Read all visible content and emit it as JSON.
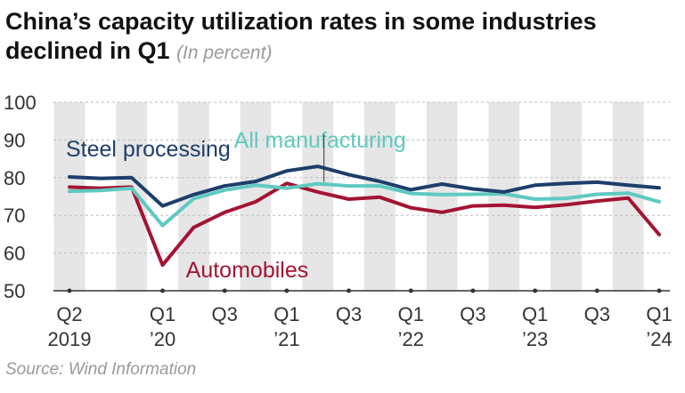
{
  "title_main": "China’s capacity utilization rates in some industries declined in Q1",
  "title_unit": "(In percent)",
  "source": "Source: Wind Information",
  "chart_data": {
    "type": "line",
    "title": "China’s capacity utilization rates in some industries declined in Q1",
    "ylabel": "In percent",
    "ylim": [
      50,
      100
    ],
    "yticks": [
      50,
      60,
      70,
      80,
      90,
      100
    ],
    "x": [
      "Q2 2019",
      "Q3 2019",
      "Q4 2019",
      "Q1 2020",
      "Q2 2020",
      "Q3 2020",
      "Q4 2020",
      "Q1 2021",
      "Q2 2021",
      "Q3 2021",
      "Q4 2021",
      "Q1 2022",
      "Q2 2022",
      "Q3 2022",
      "Q4 2022",
      "Q1 2023",
      "Q2 2023",
      "Q3 2023",
      "Q4 2023",
      "Q1 2024"
    ],
    "xtick_labels": [
      {
        "index": 0,
        "line1": "Q2",
        "line2": "2019"
      },
      {
        "index": 3,
        "line1": "Q1",
        "line2": "’20"
      },
      {
        "index": 5,
        "line1": "Q3",
        "line2": ""
      },
      {
        "index": 7,
        "line1": "Q1",
        "line2": "’21"
      },
      {
        "index": 9,
        "line1": "Q3",
        "line2": ""
      },
      {
        "index": 11,
        "line1": "Q1",
        "line2": "’22"
      },
      {
        "index": 13,
        "line1": "Q3",
        "line2": ""
      },
      {
        "index": 15,
        "line1": "Q1",
        "line2": "’23"
      },
      {
        "index": 17,
        "line1": "Q3",
        "line2": ""
      },
      {
        "index": 19,
        "line1": "Q1",
        "line2": "’24"
      }
    ],
    "series": [
      {
        "name": "Automobiles",
        "color": "#a31432",
        "values": [
          77.5,
          77.2,
          77.5,
          56.8,
          66.8,
          70.8,
          73.6,
          78.5,
          76.2,
          74.3,
          74.8,
          72.0,
          70.8,
          72.5,
          72.7,
          72.1,
          72.8,
          73.8,
          74.6,
          64.9
        ]
      },
      {
        "name": "All manufacturing",
        "color": "#5fc9c0",
        "values": [
          76.4,
          76.6,
          77.2,
          67.3,
          74.4,
          76.7,
          78.0,
          77.2,
          78.4,
          77.8,
          77.8,
          75.8,
          75.5,
          75.6,
          75.7,
          74.3,
          74.5,
          75.6,
          75.9,
          73.6
        ]
      },
      {
        "name": "Steel processing",
        "color": "#1d3e6b",
        "values": [
          80.2,
          79.8,
          80.0,
          72.5,
          75.5,
          77.8,
          79.0,
          81.8,
          83.0,
          80.8,
          79.0,
          76.8,
          78.3,
          77.0,
          76.2,
          78.0,
          78.5,
          78.8,
          78.0,
          77.3
        ]
      }
    ]
  }
}
